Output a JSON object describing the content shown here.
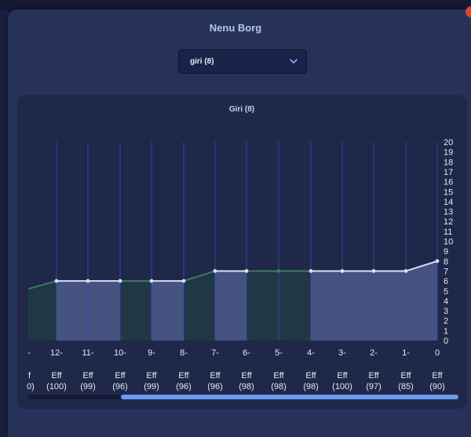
{
  "modal": {
    "title": "Nenu Borg",
    "select_value": "giri (8)"
  },
  "chart_data": {
    "type": "line",
    "title": "Giri (8)",
    "x_labels": [
      "-",
      "12-",
      "11-",
      "10-",
      "9-",
      "8-",
      "7-",
      "6-",
      "5-",
      "4-",
      "3-",
      "2-",
      "1-",
      "0"
    ],
    "bottom_labels_line1": [
      "f",
      "Eff",
      "Eff",
      "Eff",
      "Eff",
      "Eff",
      "Eff",
      "Eff",
      "Eff",
      "Eff",
      "Eff",
      "Eff",
      "Eff",
      "Eff"
    ],
    "bottom_labels_line2": [
      "0)",
      "(100)",
      "(99)",
      "(96)",
      "(99)",
      "(96)",
      "(96)",
      "(98)",
      "(98)",
      "(98)",
      "(100)",
      "(97)",
      "(85)",
      "(90)"
    ],
    "values": [
      5.2,
      6,
      6,
      6,
      6,
      6,
      7,
      7,
      7,
      7,
      7,
      7,
      7,
      8
    ],
    "ylim": [
      0,
      20
    ],
    "y_ticks": [
      "0",
      "1",
      "2",
      "3",
      "4",
      "5",
      "6",
      "7",
      "8",
      "9",
      "10",
      "11",
      "12",
      "13",
      "14",
      "15",
      "16",
      "17",
      "18",
      "19",
      "20"
    ],
    "y_axis_side": "right",
    "grid": true,
    "colors": {
      "line_light": "#d8def4",
      "line_green": "#3e7a5c",
      "fill_light": "#4a5785",
      "fill_green": "#1f3a44",
      "grid": "#3a4bd0"
    }
  },
  "scroll": {
    "position": 0.22
  }
}
